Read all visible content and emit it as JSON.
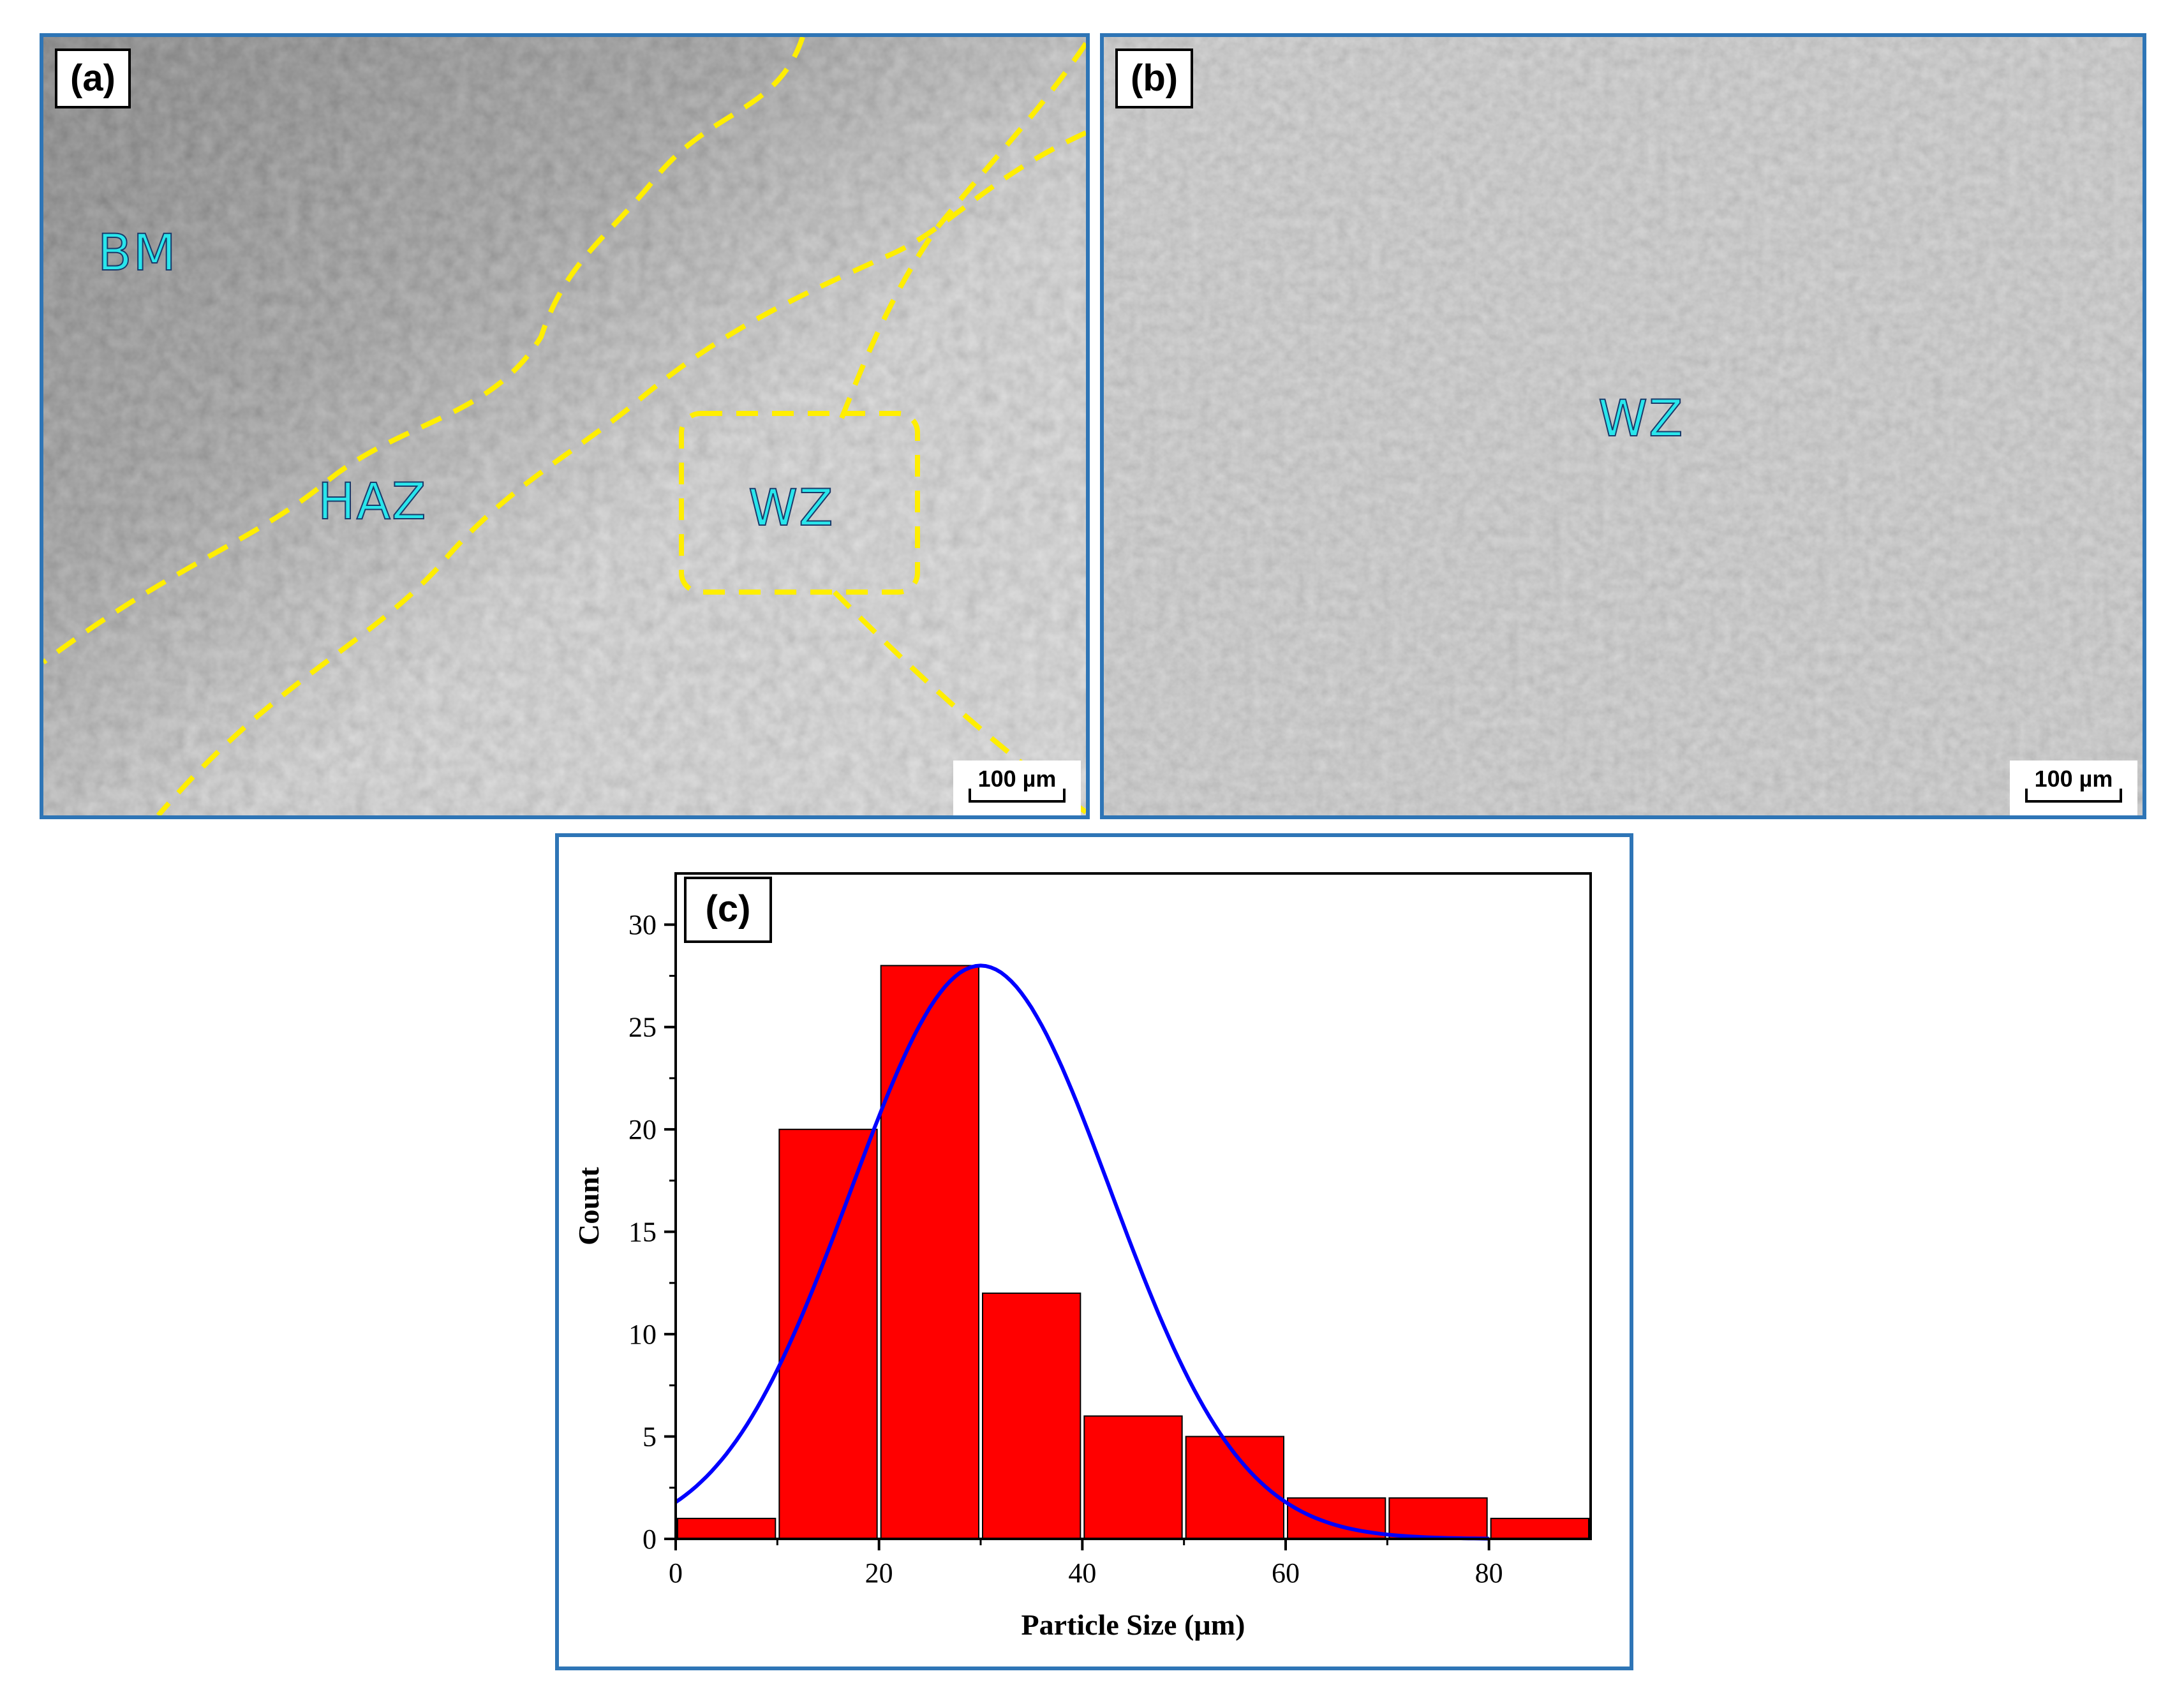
{
  "panels": {
    "a": {
      "label": "(a)",
      "zones": {
        "bm": "BM",
        "haz": "HAZ",
        "wz": "WZ"
      },
      "scale": "100 µm"
    },
    "b": {
      "label": "(b)",
      "zones": {
        "wz": "WZ"
      },
      "scale": "100 µm"
    },
    "c": {
      "label": "(c)"
    }
  },
  "colors": {
    "panel_border": "#2e75b6",
    "boundary_line": "#ffee00",
    "zone_text": "#29e6ec",
    "bar_fill": "#ff0000",
    "fit_curve": "#0000ff"
  },
  "chart_data": {
    "type": "bar",
    "xlabel": "Particle Size (µm)",
    "ylabel": "Count",
    "xlim": [
      0,
      90
    ],
    "ylim": [
      0,
      32.5
    ],
    "x_ticks": [
      0,
      20,
      40,
      60,
      80
    ],
    "y_ticks": [
      0,
      5,
      10,
      15,
      20,
      25,
      30
    ],
    "bins": [
      {
        "x0": 0,
        "x1": 10,
        "count": 1
      },
      {
        "x0": 10,
        "x1": 20,
        "count": 20
      },
      {
        "x0": 20,
        "x1": 30,
        "count": 28
      },
      {
        "x0": 30,
        "x1": 40,
        "count": 12
      },
      {
        "x0": 40,
        "x1": 50,
        "count": 6
      },
      {
        "x0": 50,
        "x1": 60,
        "count": 5
      },
      {
        "x0": 60,
        "x1": 70,
        "count": 2
      },
      {
        "x0": 70,
        "x1": 80,
        "count": 2
      },
      {
        "x0": 80,
        "x1": 90,
        "count": 1
      }
    ],
    "fit": {
      "type": "normal",
      "mean": 30,
      "sigma": 12.8,
      "peak": 28
    },
    "grid": false,
    "legend": "none"
  }
}
